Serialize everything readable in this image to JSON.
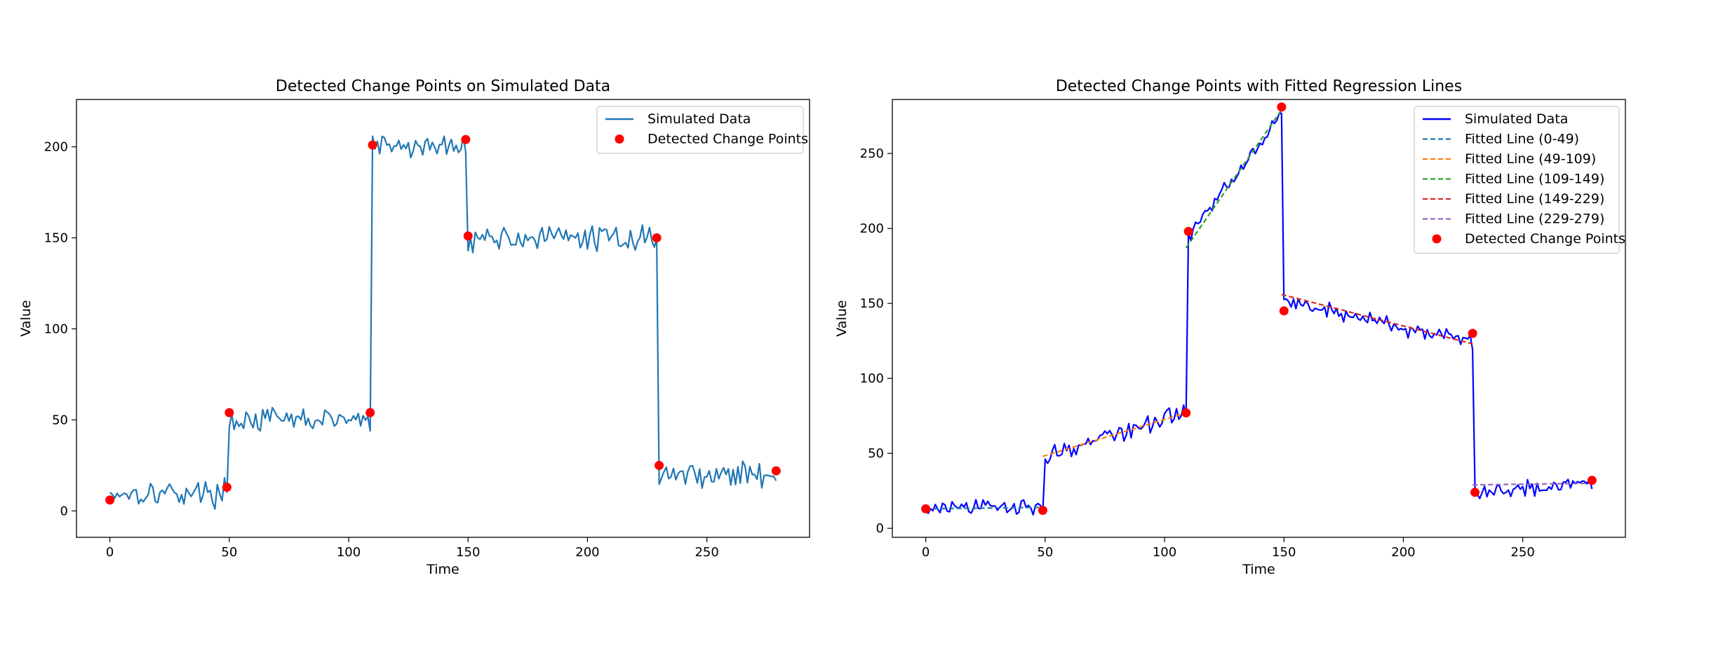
{
  "chart_data": [
    {
      "type": "line",
      "title": "Detected Change Points on Simulated Data",
      "xlabel": "Time",
      "ylabel": "Value",
      "xlim": [
        -14,
        293
      ],
      "ylim": [
        -14.5,
        226
      ],
      "xticks": [
        0,
        50,
        100,
        150,
        200,
        250
      ],
      "yticks": [
        0,
        50,
        100,
        150,
        200
      ],
      "grid": false,
      "legend_position": "top-right",
      "line_color": "#1f77b4",
      "point_color": "#ff0000",
      "series": [
        {
          "name": "Simulated Data",
          "segments": [
            {
              "start": 0,
              "end": 49,
              "level": 10,
              "slope": 0,
              "noise": 5
            },
            {
              "start": 50,
              "end": 109,
              "level": 50,
              "slope": 0,
              "noise": 5
            },
            {
              "start": 110,
              "end": 149,
              "level": 200,
              "slope": 0,
              "noise": 5
            },
            {
              "start": 150,
              "end": 229,
              "level": 150,
              "slope": 0,
              "noise": 5
            },
            {
              "start": 230,
              "end": 279,
              "level": 20,
              "slope": 0,
              "noise": 5
            }
          ]
        },
        {
          "name": "Detected Change Points",
          "x": [
            0,
            49,
            50,
            109,
            110,
            149,
            150,
            229,
            230,
            279
          ],
          "y": [
            6,
            13,
            54,
            54,
            201,
            204,
            151,
            150,
            25,
            22
          ]
        }
      ]
    },
    {
      "type": "line",
      "title": "Detected Change Points with Fitted Regression Lines",
      "xlabel": "Time",
      "ylabel": "Value",
      "xlim": [
        -14,
        293
      ],
      "ylim": [
        -6,
        286
      ],
      "xticks": [
        0,
        50,
        100,
        150,
        200,
        250
      ],
      "yticks": [
        0,
        50,
        100,
        150,
        200,
        250
      ],
      "grid": false,
      "legend_position": "top-right",
      "line_color": "#0000ff",
      "point_color": "#ff0000",
      "series": [
        {
          "name": "Simulated Data",
          "segments": [
            {
              "start": 0,
              "end": 49,
              "level": 13,
              "slope": 0.04,
              "noise": 4
            },
            {
              "start": 50,
              "end": 109,
              "level": 48,
              "slope": 0.5,
              "noise": 5
            },
            {
              "start": 110,
              "end": 149,
              "level": 195,
              "slope": 2.1,
              "noise": 4
            },
            {
              "start": 150,
              "end": 229,
              "level": 152,
              "slope": -0.36,
              "noise": 4
            },
            {
              "start": 230,
              "end": 279,
              "level": 24,
              "slope": 0.14,
              "noise": 4
            }
          ]
        },
        {
          "name": "Fitted Line (0-49)",
          "x": [
            0,
            49
          ],
          "y": [
            13,
            14
          ],
          "color": "#1f77b4"
        },
        {
          "name": "Fitted Line (49-109)",
          "x": [
            49,
            109
          ],
          "y": [
            48,
            77
          ],
          "color": "#ff7f0e"
        },
        {
          "name": "Fitted Line (109-149)",
          "x": [
            109,
            149
          ],
          "y": [
            187,
            279
          ],
          "color": "#2ca02c"
        },
        {
          "name": "Fitted Line (149-229)",
          "x": [
            149,
            229
          ],
          "y": [
            156,
            123
          ],
          "color": "#d62728"
        },
        {
          "name": "Fitted Line (229-279)",
          "x": [
            229,
            279
          ],
          "y": [
            29,
            30
          ],
          "color": "#9467bd"
        },
        {
          "name": "Detected Change Points",
          "x": [
            0,
            49,
            109,
            110,
            149,
            150,
            229,
            230,
            279
          ],
          "y": [
            13,
            12,
            77,
            198,
            281,
            145,
            130,
            24,
            32
          ]
        }
      ]
    }
  ]
}
